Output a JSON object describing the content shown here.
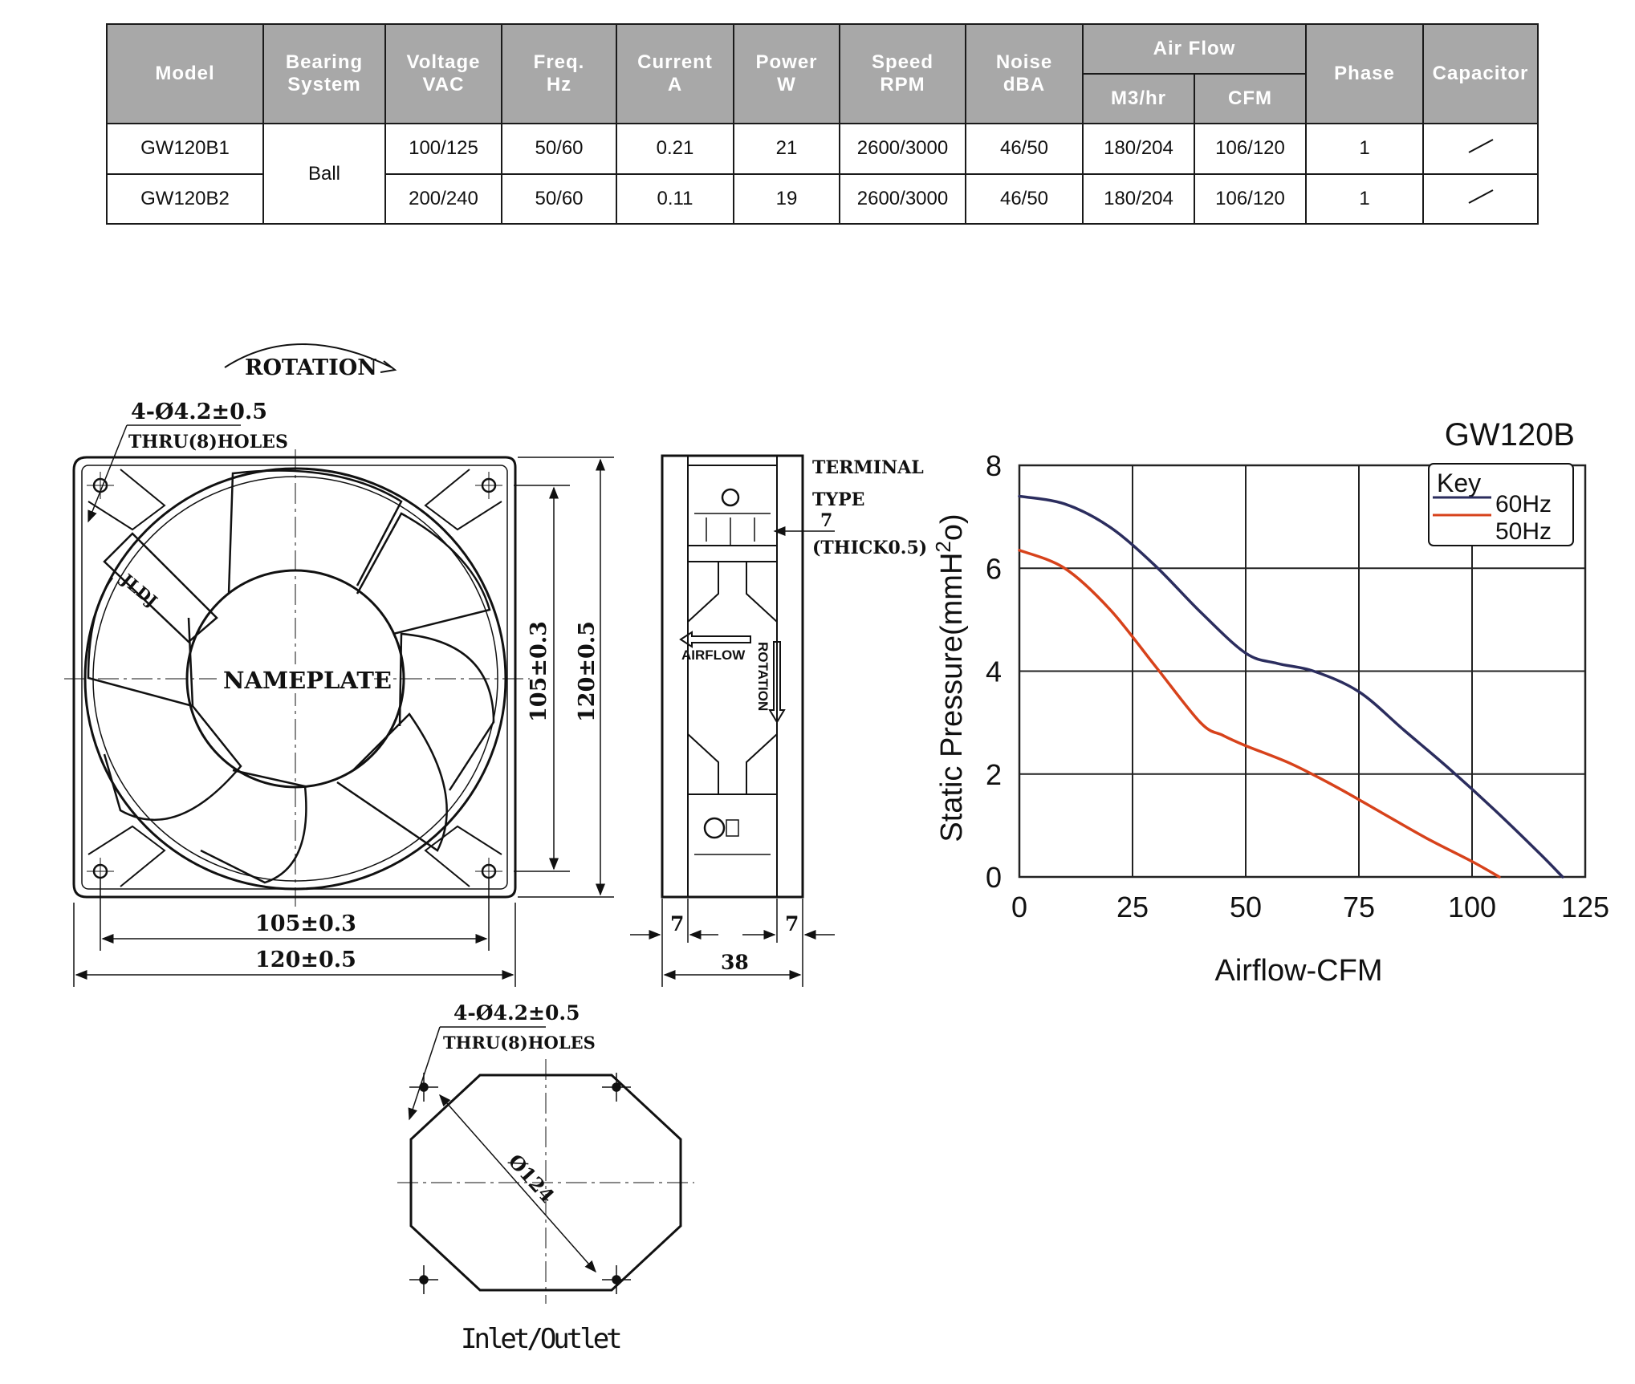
{
  "spec_table": {
    "headers": {
      "model": "Model",
      "bearing_1": "Bearing",
      "bearing_2": "System",
      "voltage_1": "Voltage",
      "voltage_2": "VAC",
      "freq_1": "Freq.",
      "freq_2": "Hz",
      "current_1": "Current",
      "current_2": "A",
      "power_1": "Power",
      "power_2": "W",
      "speed_1": "Speed",
      "speed_2": "RPM",
      "noise_1": "Noise",
      "noise_2": "dBA",
      "airflow": "Air Flow",
      "airflow_m3": "M3/hr",
      "airflow_cfm": "CFM",
      "phase": "Phase",
      "capacitor": "Capacitor"
    },
    "bearing": "Ball",
    "rows": [
      {
        "model": "GW120B1",
        "voltage": "100/125",
        "freq": "50/60",
        "current": "0.21",
        "power": "21",
        "speed": "2600/3000",
        "noise": "46/50",
        "m3hr": "180/204",
        "cfm": "106/120",
        "phase": "1"
      },
      {
        "model": "GW120B2",
        "voltage": "200/240",
        "freq": "50/60",
        "current": "0.11",
        "power": "19",
        "speed": "2600/3000",
        "noise": "46/50",
        "m3hr": "180/204",
        "cfm": "106/120",
        "phase": "1"
      }
    ]
  },
  "front_view": {
    "rotation_label": "ROTATION",
    "holes_1": "4-Ø4.2±0.5",
    "holes_2": "THRU(8)HOLES",
    "nameplate": "NAMEPLATE",
    "brand": "JLDJ",
    "dim_inner_v": "105±0.3",
    "dim_outer_v": "120±0.5",
    "dim_inner_h": "105±0.3",
    "dim_outer_h": "120±0.5"
  },
  "side_view": {
    "terminal_1": "TERMINAL",
    "terminal_2": "TYPE",
    "terminal_3": "7",
    "terminal_4": "(THICK0.5)",
    "airflow_label": "AIRFLOW",
    "rotation_label": "ROTATION",
    "dim_left": "7",
    "dim_right": "7",
    "dim_depth": "38"
  },
  "mount_view": {
    "holes_1": "4-Ø4.2±0.5",
    "holes_2": "THRU(8)HOLES",
    "diameter": "Ø124",
    "caption": "Inlet/Outlet"
  },
  "colors": {
    "series_60hz": "#2b2d5e",
    "series_50hz": "#d7421b",
    "grid": "#222222",
    "header_bg": "#a8a8a8"
  },
  "chart_data": {
    "type": "line",
    "title": "GW120B",
    "xlabel": "Airflow-CFM",
    "ylabel": "Static Pressure(mmH2o)",
    "ylabel_main": "Static Pressure(mmH",
    "ylabel_sup": "2",
    "ylabel_end": "o)",
    "xlim": [
      0,
      125
    ],
    "ylim": [
      0,
      8
    ],
    "xticks": [
      0,
      25,
      50,
      75,
      100,
      125
    ],
    "yticks": [
      0,
      2,
      4,
      6,
      8
    ],
    "grid": true,
    "legend_title": "Key",
    "legend_position": "top-right",
    "series": [
      {
        "name": "60Hz",
        "color": "#2b2d5e",
        "x": [
          0,
          10,
          20,
          30,
          40,
          50,
          57,
          65,
          75,
          85,
          95,
          105,
          115,
          120
        ],
        "y": [
          7.4,
          7.25,
          6.8,
          6.05,
          5.15,
          4.35,
          4.15,
          4.0,
          3.6,
          2.85,
          2.1,
          1.3,
          0.45,
          0.0
        ]
      },
      {
        "name": "50Hz",
        "color": "#d7421b",
        "x": [
          0,
          10,
          20,
          30,
          40,
          45,
          50,
          60,
          70,
          80,
          90,
          100,
          106
        ],
        "y": [
          6.35,
          6.0,
          5.2,
          4.1,
          3.0,
          2.75,
          2.55,
          2.2,
          1.75,
          1.25,
          0.75,
          0.3,
          0.0
        ]
      }
    ]
  }
}
